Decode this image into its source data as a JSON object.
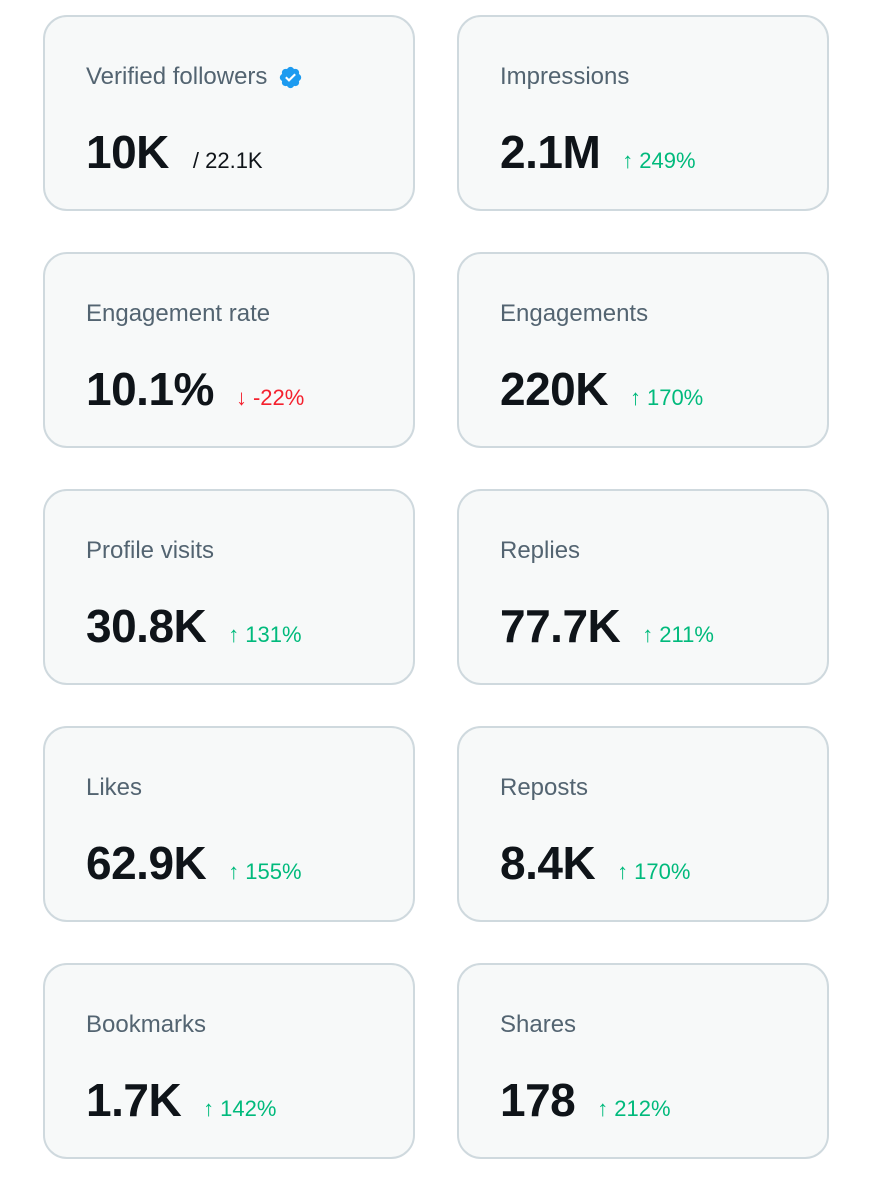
{
  "colors": {
    "card_bg": "#f7f9f9",
    "card_border": "#cfd9de",
    "label": "#536471",
    "value": "#0f1419",
    "positive": "#00ba7c",
    "negative": "#f4212e",
    "verified_badge": "#1d9bf0"
  },
  "metrics": {
    "verified_followers": {
      "label": "Verified followers",
      "icon": "verified-badge-icon",
      "value": "10K",
      "total": "/ 22.1K"
    },
    "impressions": {
      "label": "Impressions",
      "value": "2.1M",
      "arrow": "↑",
      "change": "249%"
    },
    "engagement_rate": {
      "label": "Engagement rate",
      "value": "10.1%",
      "arrow": "↓",
      "change": "-22%"
    },
    "engagements": {
      "label": "Engagements",
      "value": "220K",
      "arrow": "↑",
      "change": "170%"
    },
    "profile_visits": {
      "label": "Profile visits",
      "value": "30.8K",
      "arrow": "↑",
      "change": "131%"
    },
    "replies": {
      "label": "Replies",
      "value": "77.7K",
      "arrow": "↑",
      "change": "211%"
    },
    "likes": {
      "label": "Likes",
      "value": "62.9K",
      "arrow": "↑",
      "change": "155%"
    },
    "reposts": {
      "label": "Reposts",
      "value": "8.4K",
      "arrow": "↑",
      "change": "170%"
    },
    "bookmarks": {
      "label": "Bookmarks",
      "value": "1.7K",
      "arrow": "↑",
      "change": "142%"
    },
    "shares": {
      "label": "Shares",
      "value": "178",
      "arrow": "↑",
      "change": "212%"
    }
  }
}
